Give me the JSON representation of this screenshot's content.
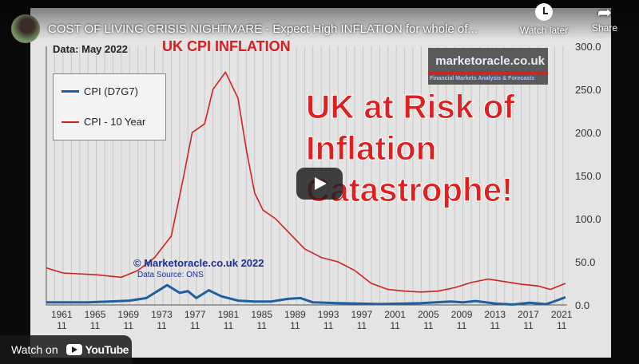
{
  "video": {
    "title": "COST OF LIVING CRISIS NIGHTMARE - Expect High INFLATION for whole of...",
    "watch_later": "Watch later",
    "share": "Share",
    "watch_on": "Watch on",
    "youtube": "YouTube"
  },
  "thumbnail": {
    "chart_title": "UK CPI INFLATION",
    "date_label": "Data:  May 2022",
    "logo_text": "marketoracle.co.uk",
    "logo_tagline": "Financial Markets Analysis & Forecasts",
    "headline": [
      "UK at Risk of",
      "Inflation",
      "Catastrophe!"
    ],
    "copyright": "© Marketoracle.co.uk 2022",
    "source": "Data Source: ONS"
  },
  "chart_data": {
    "type": "line",
    "title": "UK CPI INFLATION",
    "ylim": [
      0,
      300
    ],
    "yticks": [
      "0.0",
      "50.0",
      "100.0",
      "150.0",
      "200.0",
      "250.0",
      "300.0"
    ],
    "xticks": [
      [
        "1961",
        "11"
      ],
      [
        "1965",
        "11"
      ],
      [
        "1969",
        "11"
      ],
      [
        "1973",
        "11"
      ],
      [
        "1977",
        "11"
      ],
      [
        "1981",
        "11"
      ],
      [
        "1985",
        "11"
      ],
      [
        "1989",
        "11"
      ],
      [
        "1993",
        "11"
      ],
      [
        "1997",
        "11"
      ],
      [
        "2001",
        "11"
      ],
      [
        "2005",
        "11"
      ],
      [
        "2009",
        "11"
      ],
      [
        "2013",
        "11"
      ],
      [
        "2017",
        "11"
      ],
      [
        "2021",
        "11"
      ]
    ],
    "xlim": [
      1960,
      2022.5
    ],
    "series": [
      {
        "name": "CPI (D7G7)",
        "color": "#1f5fa0",
        "x": [
          1960,
          1965,
          1970,
          1972,
          1974.5,
          1976,
          1977,
          1978,
          1979.5,
          1981,
          1983,
          1985,
          1987,
          1989,
          1990.5,
          1992,
          1995,
          2000,
          2005,
          2008.5,
          2010,
          2011.5,
          2014,
          2016,
          2018,
          2020,
          2021.5,
          2022.3
        ],
        "y": [
          3,
          3,
          5,
          8,
          23,
          14,
          16,
          8,
          17,
          10,
          5,
          4,
          4,
          7,
          8,
          3,
          2,
          1,
          2,
          4,
          3,
          4.5,
          1.5,
          0.5,
          2.5,
          0.8,
          6,
          9
        ]
      },
      {
        "name": "CPI - 10 Year",
        "color": "#d42020",
        "x": [
          1960,
          1962,
          1966,
          1969,
          1971,
          1973,
          1975,
          1976.5,
          1977.5,
          1979,
          1980,
          1981.5,
          1983,
          1984,
          1985,
          1986,
          1987.5,
          1989,
          1991,
          1993,
          1995,
          1997,
          1999,
          2001,
          2003,
          2005,
          2007,
          2009,
          2011,
          2013,
          2015,
          2017,
          2019,
          2020.5,
          2022.3
        ],
        "y": [
          43,
          37,
          35,
          32,
          40,
          55,
          80,
          150,
          200,
          210,
          250,
          270,
          240,
          180,
          130,
          110,
          100,
          85,
          65,
          55,
          50,
          40,
          25,
          18,
          16,
          15,
          16,
          20,
          26,
          30,
          27,
          24,
          22,
          18,
          25
        ]
      }
    ],
    "legend": "top-left"
  }
}
